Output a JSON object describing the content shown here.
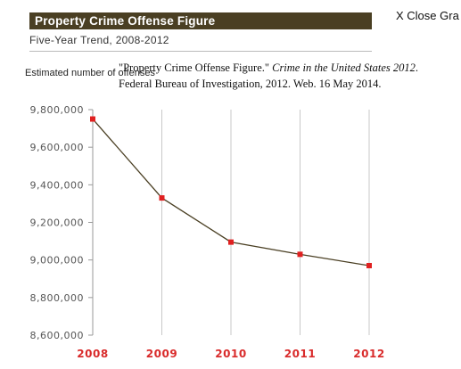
{
  "header": {
    "title": "Property Crime Offense Figure",
    "close_label": "X Close Gra",
    "subtitle": "Five-Year Trend, 2008-2012"
  },
  "citation": {
    "line1_prefix": "\"Property Crime Offense Figure.\" ",
    "line1_italic": "Crime in the United States 2012",
    "line1_suffix": ".",
    "line2": "Federal Bureau of Investigation, 2012. Web. 16 May 2014."
  },
  "colors": {
    "title_bar": "#4a3f23",
    "line": "#4a3f23",
    "marker": "#e02020",
    "x_tick_label": "#d92b2b",
    "grid": "#c8c8c8"
  },
  "chart_data": {
    "type": "line",
    "title": "Property Crime Offense Figure",
    "subtitle": "Five-Year Trend, 2008-2012",
    "ylabel": "Estimated number of offenses",
    "xlabel": "",
    "categories": [
      "2008",
      "2009",
      "2010",
      "2011",
      "2012"
    ],
    "series": [
      {
        "values": [
          9750000,
          9330000,
          9095000,
          9030000,
          8970000
        ]
      }
    ],
    "ylim": [
      8600000,
      9800000
    ],
    "y_ticks": [
      9800000,
      9600000,
      9400000,
      9200000,
      9000000,
      8800000,
      8600000
    ],
    "y_tick_labels": [
      "9,800,000",
      "9,600,000",
      "9,400,000",
      "9,200,000",
      "9,000,000",
      "8,800,000",
      "8,600,000"
    ],
    "grid": "vertical",
    "legend": "none"
  }
}
